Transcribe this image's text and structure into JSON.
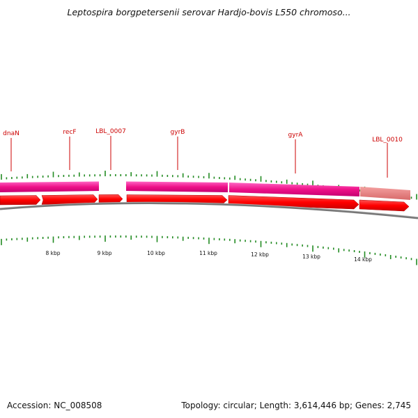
{
  "title": "Leptospira borgpetersenii serovar Hardjo-bovis L550 chromoso...",
  "genes": [
    {
      "name": "dnaN"
    },
    {
      "name": "recF"
    },
    {
      "name": "LBL_0007"
    },
    {
      "name": "gyrB"
    },
    {
      "name": "gyrA"
    },
    {
      "name": "LBL_0010"
    }
  ],
  "scale_ticks": [
    "8 kbp",
    "9 kbp",
    "10 kbp",
    "11 kbp",
    "12 kbp",
    "13 kbp",
    "14 kbp"
  ],
  "footer": {
    "accession": "Accession: NC_008508",
    "summary": "Topology: circular; Length: 3,614,446 bp; Genes: 2,745"
  },
  "colors": {
    "cds_arrow": "#ff0000",
    "feature_band": "#ee1188",
    "feature_band_faded": "#e87878",
    "label": "#cc0000",
    "tick": "#228b22",
    "backbone": "#777777"
  }
}
